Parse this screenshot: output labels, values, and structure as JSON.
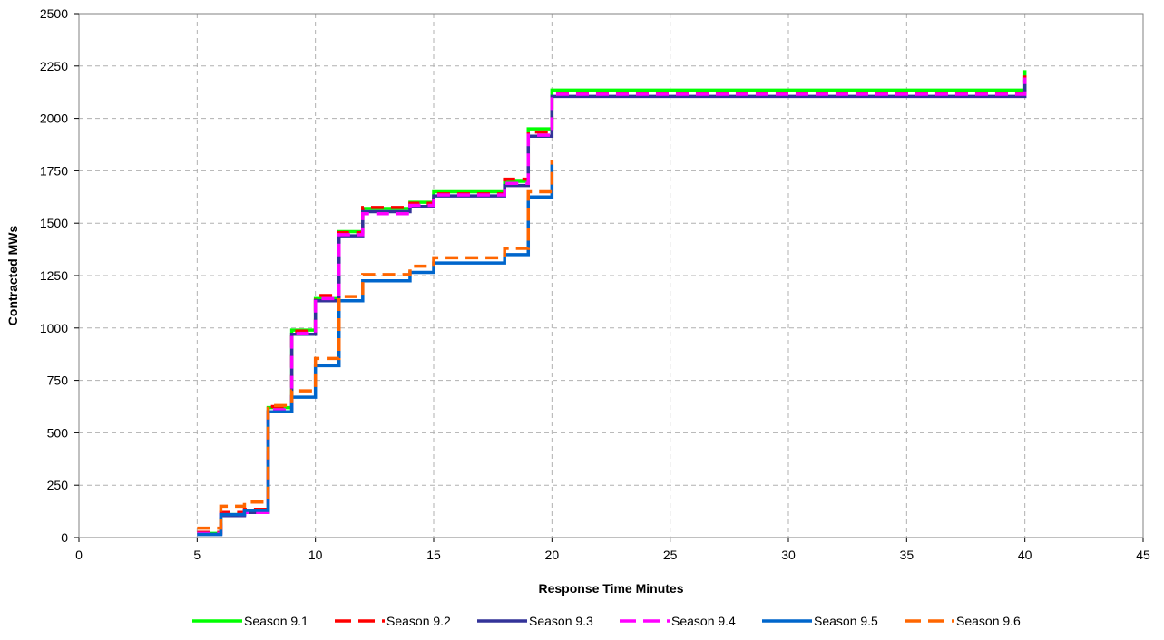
{
  "chart_data": {
    "type": "line",
    "step": true,
    "title": "",
    "xlabel": "Response Time Minutes",
    "ylabel": "Contracted MWs",
    "xlim": [
      0,
      45
    ],
    "ylim": [
      0,
      2500
    ],
    "xticks": [
      0,
      5,
      10,
      15,
      20,
      25,
      30,
      35,
      40,
      45
    ],
    "yticks": [
      0,
      250,
      500,
      750,
      1000,
      1250,
      1500,
      1750,
      2000,
      2250,
      2500
    ],
    "grid": true,
    "legend_position": "bottom",
    "series": [
      {
        "name": "Season 9.1",
        "color": "#00ff00",
        "dash": "solid",
        "points": [
          [
            5,
            20
          ],
          [
            6,
            110
          ],
          [
            7,
            125
          ],
          [
            8,
            620
          ],
          [
            9,
            990
          ],
          [
            10,
            1140
          ],
          [
            11,
            1460
          ],
          [
            12,
            1570
          ],
          [
            14,
            1600
          ],
          [
            15,
            1650
          ],
          [
            18,
            1700
          ],
          [
            19,
            1950
          ],
          [
            20,
            2135
          ],
          [
            40,
            2230
          ]
        ]
      },
      {
        "name": "Season 9.2",
        "color": "#ff0000",
        "dash": "dashed",
        "points": [
          [
            5,
            25
          ],
          [
            6,
            120
          ],
          [
            7,
            135
          ],
          [
            8,
            625
          ],
          [
            9,
            985
          ],
          [
            10,
            1155
          ],
          [
            11,
            1455
          ],
          [
            12,
            1575
          ],
          [
            14,
            1595
          ],
          [
            15,
            1640
          ],
          [
            18,
            1710
          ],
          [
            19,
            1935
          ],
          [
            20,
            2120
          ],
          [
            40,
            2205
          ]
        ]
      },
      {
        "name": "Season 9.3",
        "color": "#333399",
        "dash": "solid",
        "points": [
          [
            5,
            15
          ],
          [
            6,
            105
          ],
          [
            7,
            120
          ],
          [
            8,
            600
          ],
          [
            9,
            970
          ],
          [
            10,
            1130
          ],
          [
            11,
            1440
          ],
          [
            12,
            1555
          ],
          [
            14,
            1580
          ],
          [
            15,
            1630
          ],
          [
            18,
            1680
          ],
          [
            19,
            1915
          ],
          [
            20,
            2105
          ],
          [
            40,
            2185
          ]
        ]
      },
      {
        "name": "Season 9.4",
        "color": "#ff00ff",
        "dash": "dashed",
        "points": [
          [
            5,
            20
          ],
          [
            6,
            110
          ],
          [
            7,
            120
          ],
          [
            8,
            610
          ],
          [
            9,
            975
          ],
          [
            10,
            1140
          ],
          [
            11,
            1445
          ],
          [
            12,
            1545
          ],
          [
            14,
            1585
          ],
          [
            15,
            1635
          ],
          [
            18,
            1690
          ],
          [
            19,
            1920
          ],
          [
            20,
            2115
          ],
          [
            40,
            2195
          ]
        ]
      },
      {
        "name": "Season 9.5",
        "color": "#0066cc",
        "dash": "solid",
        "points": [
          [
            5,
            15
          ],
          [
            6,
            110
          ],
          [
            7,
            130
          ],
          [
            8,
            600
          ],
          [
            9,
            670
          ],
          [
            10,
            820
          ],
          [
            11,
            1130
          ],
          [
            12,
            1225
          ],
          [
            14,
            1265
          ],
          [
            15,
            1310
          ],
          [
            18,
            1350
          ],
          [
            19,
            1625
          ],
          [
            20,
            1780
          ]
        ]
      },
      {
        "name": "Season 9.6",
        "color": "#ff6600",
        "dash": "dashed",
        "points": [
          [
            5,
            45
          ],
          [
            6,
            150
          ],
          [
            7,
            170
          ],
          [
            8,
            630
          ],
          [
            9,
            700
          ],
          [
            10,
            855
          ],
          [
            11,
            1150
          ],
          [
            12,
            1255
          ],
          [
            14,
            1295
          ],
          [
            15,
            1335
          ],
          [
            18,
            1380
          ],
          [
            19,
            1650
          ],
          [
            20,
            1800
          ]
        ]
      }
    ]
  }
}
